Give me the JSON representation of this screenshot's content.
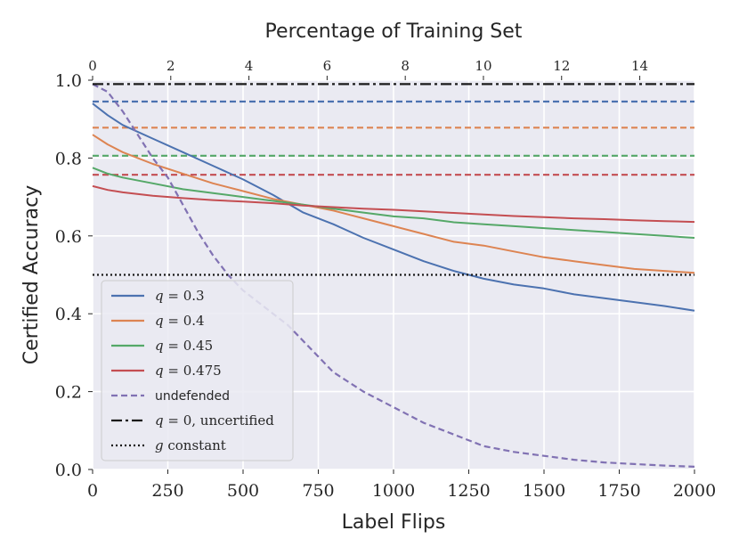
{
  "chart_data": {
    "type": "line",
    "title": "",
    "xlabel": "Label Flips",
    "ylabel": "Certified Accuracy",
    "top_xlabel": "Percentage of Training Set",
    "xlim": [
      0,
      2000
    ],
    "ylim": [
      0.0,
      1.0
    ],
    "top_xlim": [
      0,
      15.4
    ],
    "xticks": [
      0,
      250,
      500,
      750,
      1000,
      1250,
      1500,
      1750,
      2000
    ],
    "xtick_labels": [
      "0",
      "250",
      "500",
      "750",
      "1000",
      "1250",
      "1500",
      "1750",
      "2000"
    ],
    "yticks": [
      0.0,
      0.2,
      0.4,
      0.6,
      0.8,
      1.0
    ],
    "ytick_labels": [
      "0.0",
      "0.2",
      "0.4",
      "0.6",
      "0.8",
      "1.0"
    ],
    "top_xticks": [
      0,
      2,
      4,
      6,
      8,
      10,
      12,
      14
    ],
    "top_xtick_labels": [
      "0",
      "2",
      "4",
      "6",
      "8",
      "10",
      "12",
      "14"
    ],
    "grid": true,
    "legend_position": "lower-left",
    "series": [
      {
        "name": "q = 0.3",
        "legend_prefix": "q",
        "legend_value": " = 0.3",
        "style": "solid",
        "color": "#4c72b0",
        "x": [
          0,
          50,
          100,
          200,
          300,
          400,
          500,
          600,
          700,
          800,
          900,
          1000,
          1100,
          1200,
          1300,
          1400,
          1500,
          1600,
          1700,
          1800,
          1900,
          2000
        ],
        "y": [
          0.94,
          0.91,
          0.885,
          0.85,
          0.815,
          0.78,
          0.745,
          0.705,
          0.66,
          0.63,
          0.595,
          0.565,
          0.535,
          0.51,
          0.49,
          0.475,
          0.465,
          0.45,
          0.44,
          0.43,
          0.42,
          0.408
        ]
      },
      {
        "name": "q = 0.4",
        "legend_prefix": "q",
        "legend_value": " = 0.4",
        "style": "solid",
        "color": "#dd8452",
        "x": [
          0,
          50,
          100,
          200,
          300,
          400,
          500,
          600,
          700,
          800,
          900,
          1000,
          1100,
          1200,
          1300,
          1400,
          1500,
          1600,
          1700,
          1800,
          1900,
          2000
        ],
        "y": [
          0.86,
          0.835,
          0.815,
          0.785,
          0.76,
          0.735,
          0.715,
          0.695,
          0.68,
          0.665,
          0.645,
          0.625,
          0.605,
          0.585,
          0.575,
          0.56,
          0.545,
          0.535,
          0.525,
          0.515,
          0.51,
          0.505
        ]
      },
      {
        "name": "q = 0.45",
        "legend_prefix": "q",
        "legend_value": " = 0.45",
        "style": "solid",
        "color": "#55a868",
        "x": [
          0,
          50,
          100,
          200,
          300,
          400,
          500,
          600,
          700,
          800,
          900,
          1000,
          1100,
          1200,
          1300,
          1400,
          1500,
          1600,
          1700,
          1800,
          1900,
          2000
        ],
        "y": [
          0.775,
          0.76,
          0.75,
          0.735,
          0.72,
          0.71,
          0.7,
          0.69,
          0.68,
          0.67,
          0.66,
          0.65,
          0.645,
          0.635,
          0.63,
          0.625,
          0.62,
          0.615,
          0.61,
          0.605,
          0.6,
          0.595
        ]
      },
      {
        "name": "q = 0.475",
        "legend_prefix": "q",
        "legend_value": " = 0.475",
        "style": "solid",
        "color": "#c44e52",
        "x": [
          0,
          50,
          100,
          200,
          300,
          400,
          500,
          600,
          700,
          800,
          900,
          1000,
          1100,
          1200,
          1300,
          1400,
          1500,
          1600,
          1700,
          1800,
          1900,
          2000
        ],
        "y": [
          0.728,
          0.718,
          0.712,
          0.703,
          0.697,
          0.692,
          0.688,
          0.684,
          0.678,
          0.674,
          0.67,
          0.667,
          0.663,
          0.659,
          0.655,
          0.651,
          0.648,
          0.645,
          0.643,
          0.64,
          0.638,
          0.636
        ]
      },
      {
        "name": "undefended",
        "legend_prefix": "",
        "legend_value": "undefended",
        "style": "dashed",
        "color": "#8172b3",
        "x": [
          0,
          50,
          100,
          150,
          200,
          250,
          300,
          350,
          400,
          450,
          500,
          550,
          600,
          650,
          700,
          750,
          800,
          900,
          1000,
          1100,
          1200,
          1300,
          1400,
          1500,
          1600,
          1700,
          1800,
          1900,
          2000
        ],
        "y": [
          0.99,
          0.97,
          0.92,
          0.86,
          0.8,
          0.75,
          0.68,
          0.61,
          0.55,
          0.5,
          0.46,
          0.43,
          0.4,
          0.37,
          0.33,
          0.29,
          0.25,
          0.2,
          0.16,
          0.12,
          0.09,
          0.06,
          0.045,
          0.035,
          0.025,
          0.018,
          0.014,
          0.01,
          0.007
        ]
      },
      {
        "name": "q = 0, uncertified",
        "legend_prefix": "q",
        "legend_value": " = 0, uncertified",
        "style": "dashdot",
        "color": "#1a1a1a",
        "x": [
          0,
          2000
        ],
        "y": [
          0.99,
          0.99
        ]
      },
      {
        "name": "g constant",
        "legend_prefix": "g",
        "legend_value": " constant",
        "style": "dotted",
        "color": "#1a1a1a",
        "x": [
          0,
          2000
        ],
        "y": [
          0.5,
          0.5
        ]
      },
      {
        "name": "q = 0.3 reference",
        "legend_prefix": "",
        "legend_value": "",
        "style": "dashed",
        "color": "#4c72b0",
        "in_legend": false,
        "x": [
          0,
          2000
        ],
        "y": [
          0.945,
          0.945
        ]
      },
      {
        "name": "q = 0.4 reference",
        "legend_prefix": "",
        "legend_value": "",
        "style": "dashed",
        "color": "#dd8452",
        "in_legend": false,
        "x": [
          0,
          2000
        ],
        "y": [
          0.878,
          0.878
        ]
      },
      {
        "name": "q = 0.45 reference",
        "legend_prefix": "",
        "legend_value": "",
        "style": "dashed",
        "color": "#55a868",
        "in_legend": false,
        "x": [
          0,
          2000
        ],
        "y": [
          0.806,
          0.806
        ]
      },
      {
        "name": "q = 0.475 reference",
        "legend_prefix": "",
        "legend_value": "",
        "style": "dashed",
        "color": "#c44e52",
        "in_legend": false,
        "x": [
          0,
          2000
        ],
        "y": [
          0.757,
          0.757
        ]
      }
    ]
  },
  "colors": {
    "plot_background": "#eaeaf2",
    "grid": "#ffffff",
    "text": "#262626"
  }
}
